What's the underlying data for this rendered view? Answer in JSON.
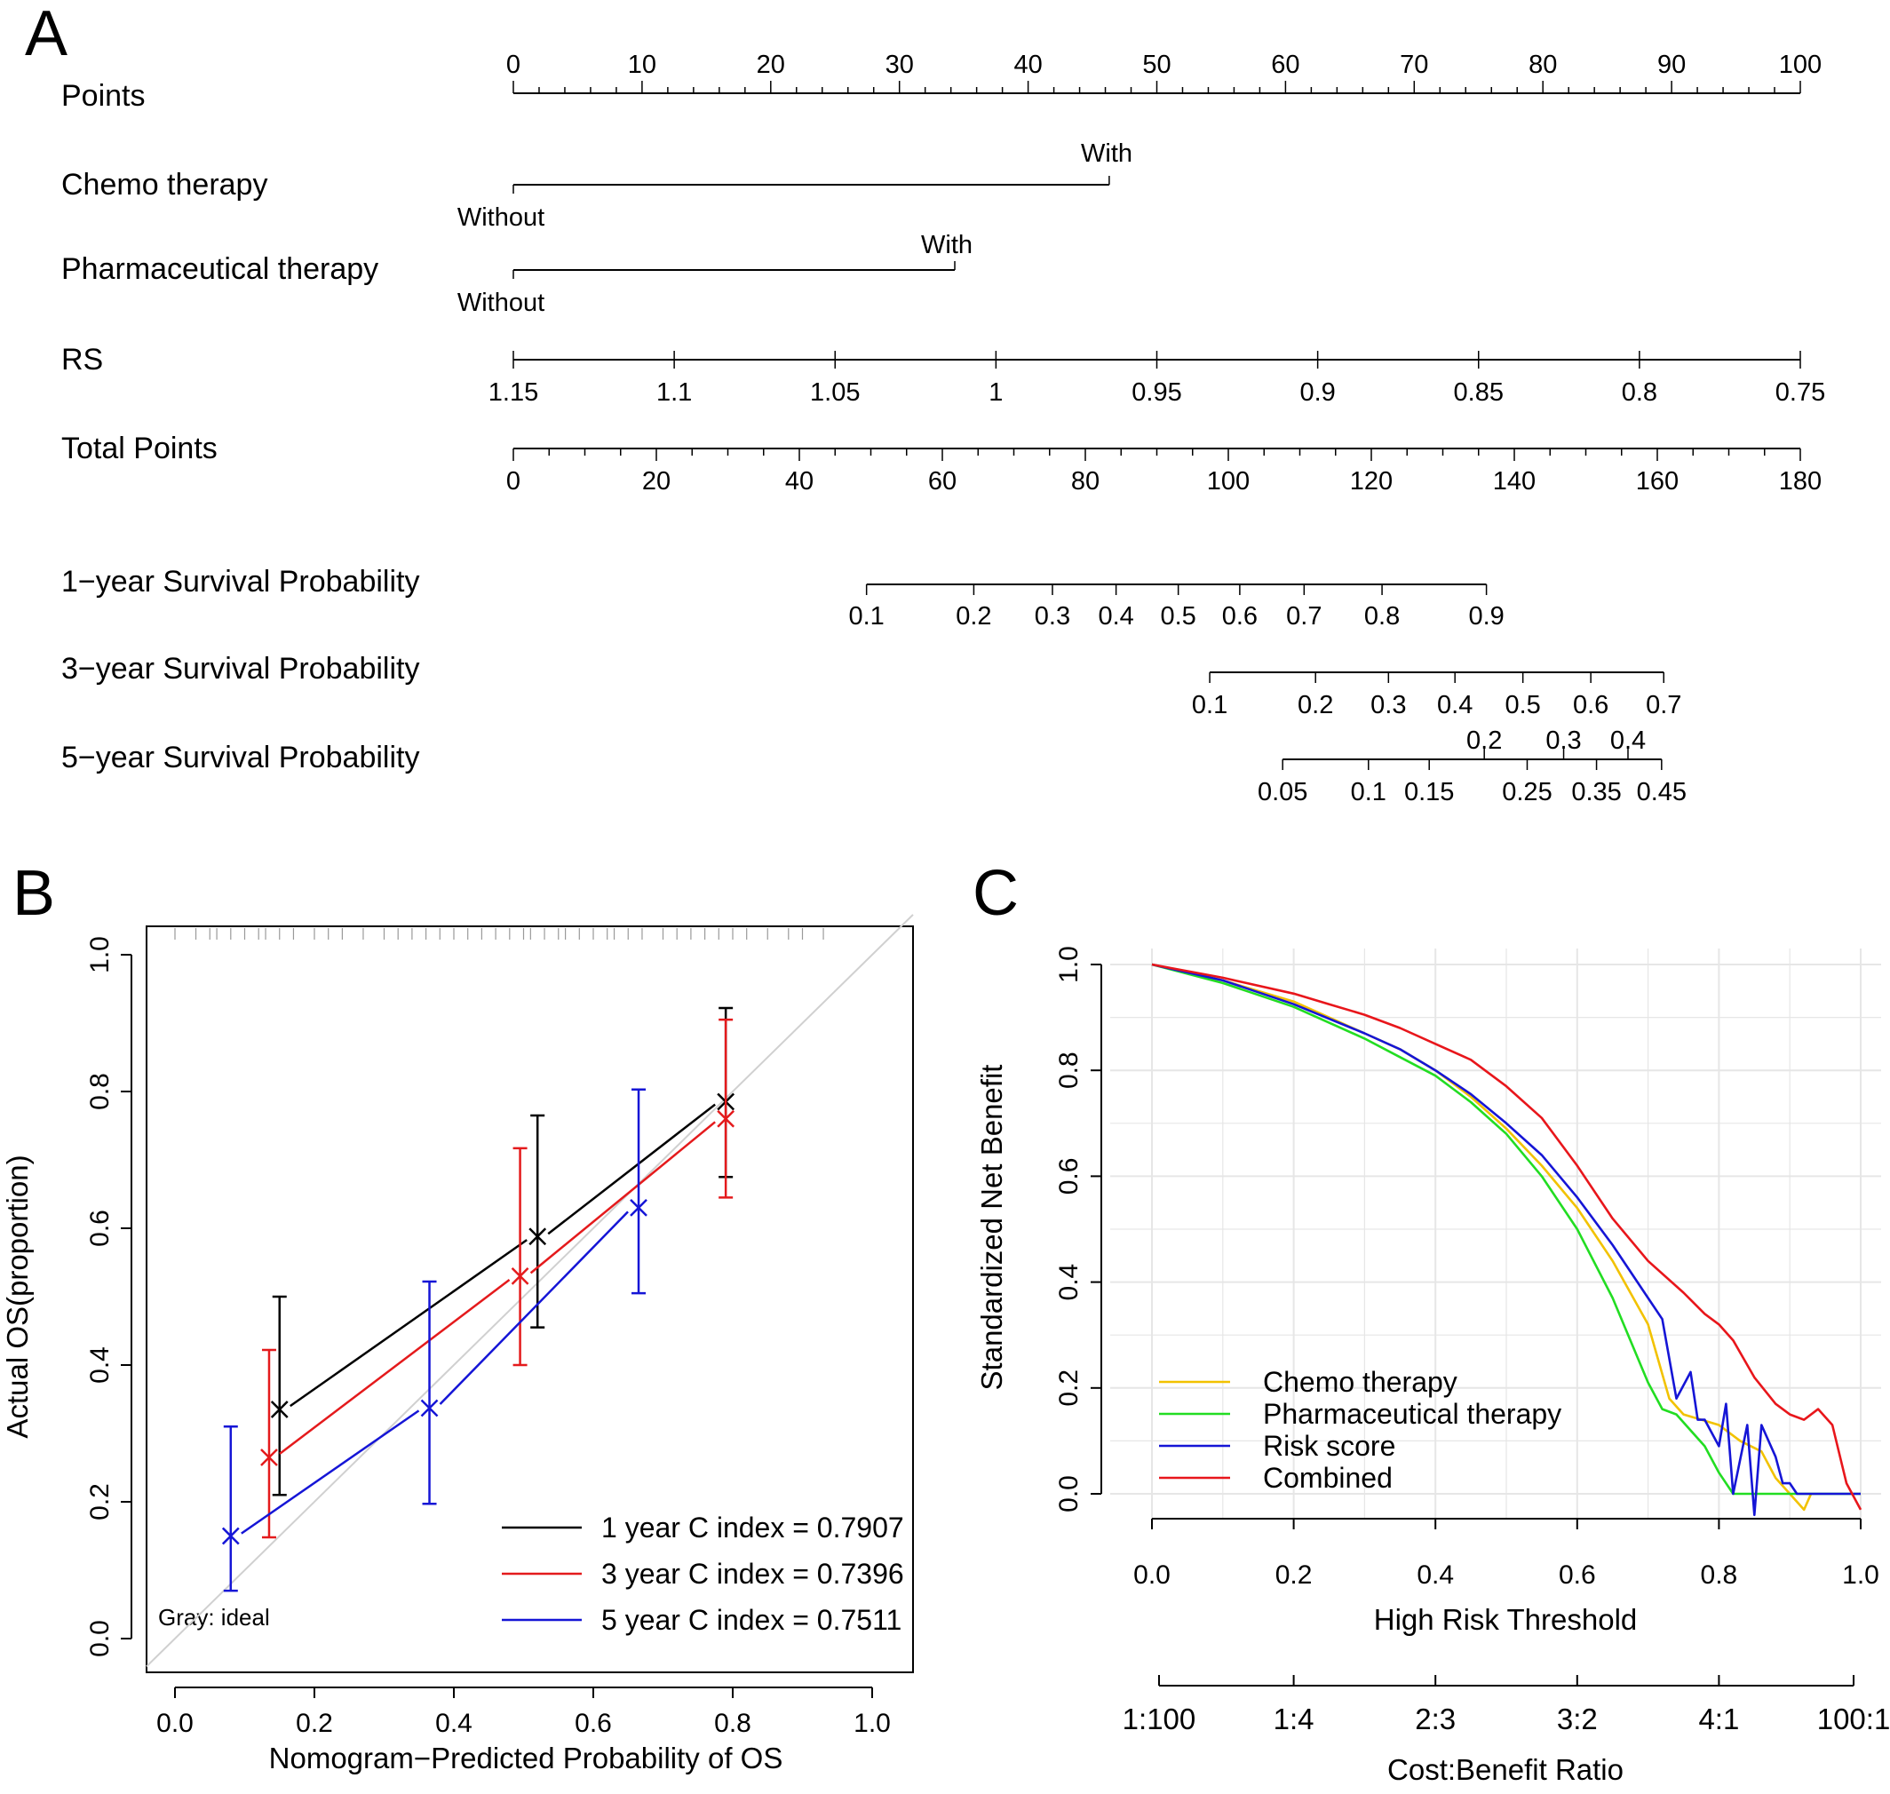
{
  "panels": {
    "A": {
      "letter": "A",
      "rows": [
        {
          "label": "Points"
        },
        {
          "label": "Chemo therapy",
          "level_high": "With",
          "level_low": "Without"
        },
        {
          "label": "Pharmaceutical therapy",
          "level_high": "With",
          "level_low": "Without"
        },
        {
          "label": "RS"
        },
        {
          "label": "Total Points"
        },
        {
          "label": "1−year Survival Probability"
        },
        {
          "label": "3−year Survival Probability"
        },
        {
          "label": "5−year Survival Probability"
        }
      ]
    },
    "B": {
      "letter": "B",
      "ideal_label": "Gray: ideal",
      "legend_position": "bottom-right"
    },
    "C": {
      "letter": "C",
      "legend_position": "bottom-left",
      "secondary_axis": {
        "label": "Cost:Benefit Ratio",
        "ticks": [
          "1:100",
          "1:4",
          "2:3",
          "3:2",
          "4:1",
          "100:1"
        ],
        "tick_thresholds": [
          0.01,
          0.2,
          0.4,
          0.6,
          0.8,
          0.99
        ]
      }
    }
  },
  "colors": {
    "black": "#000000",
    "red": "#e41a1c",
    "blue": "#1515d6",
    "yellow": "#f2c200",
    "green": "#22dd22",
    "combined": "#e8161b",
    "gray_ideal": "#d0d0d0",
    "grid": "#e6e6e6",
    "rug": "#9a9a9a"
  },
  "chart_data": [
    {
      "type": "nomogram",
      "scales": {
        "points": {
          "min": 0,
          "max": 100,
          "labels": [
            0,
            10,
            20,
            30,
            40,
            50,
            60,
            70,
            80,
            90,
            100
          ]
        },
        "chemo": {
          "Without": 0,
          "With": 46.3
        },
        "pharma": {
          "Without": 0,
          "With": 34.3
        },
        "rs": {
          "labels": [
            "1.15",
            "1.1",
            "1.05",
            "1",
            "0.95",
            "0.9",
            "0.85",
            "0.8",
            "0.75"
          ],
          "points": [
            0,
            12.5,
            25,
            37.5,
            50,
            62.5,
            75,
            87.5,
            100
          ]
        },
        "total_points": {
          "min": 0,
          "max": 180,
          "labels": [
            0,
            20,
            40,
            60,
            80,
            100,
            120,
            140,
            160,
            180
          ]
        },
        "surv1": {
          "labels": [
            "0.1",
            "0.2",
            "0.3",
            "0.4",
            "0.5",
            "0.6",
            "0.7",
            "0.8",
            "0.9"
          ],
          "total_points": [
            49.4,
            64.4,
            75.4,
            84.3,
            93,
            101.6,
            110.6,
            121.5,
            136.1
          ]
        },
        "surv3": {
          "labels": [
            "0.1",
            "0.2",
            "0.3",
            "0.4",
            "0.5",
            "0.6",
            "0.7"
          ],
          "total_points": [
            97.4,
            112.2,
            122.4,
            131.7,
            141.2,
            150.7,
            160.9
          ]
        },
        "surv5_upper": {
          "labels": [
            "0.2",
            "0.3",
            "0.4"
          ],
          "total_points": [
            135.8,
            146.9,
            155.9
          ]
        },
        "surv5": {
          "labels": [
            "0.05",
            "0.1",
            "0.15",
            "0.25",
            "0.35",
            "0.45"
          ],
          "total_points": [
            107.6,
            119.6,
            128.1,
            141.8,
            151.5,
            160.6
          ]
        }
      }
    },
    {
      "type": "line",
      "title": "",
      "xlabel": "Nomogram−Predicted Probability of OS",
      "ylabel": "Actual OS(proportion)",
      "xlim": [
        0,
        1
      ],
      "ylim": [
        0,
        1
      ],
      "x_ticks": [
        "0.0",
        "0.2",
        "0.4",
        "0.6",
        "0.8",
        "1.0"
      ],
      "y_ticks": [
        "0.0",
        "0.2",
        "0.4",
        "0.6",
        "0.8",
        "1.0"
      ],
      "series": [
        {
          "name": "1 year C index = 0.7907",
          "color": "#000000",
          "points": [
            {
              "x": 0.15,
              "y": 0.335,
              "lo": 0.21,
              "hi": 0.5
            },
            {
              "x": 0.52,
              "y": 0.588,
              "lo": 0.455,
              "hi": 0.765
            },
            {
              "x": 0.79,
              "y": 0.785,
              "lo": 0.675,
              "hi": 0.922
            }
          ]
        },
        {
          "name": "3 year C index = 0.7396",
          "color": "#e41a1c",
          "points": [
            {
              "x": 0.135,
              "y": 0.265,
              "lo": 0.148,
              "hi": 0.422
            },
            {
              "x": 0.495,
              "y": 0.53,
              "lo": 0.4,
              "hi": 0.717
            },
            {
              "x": 0.79,
              "y": 0.76,
              "lo": 0.645,
              "hi": 0.905
            }
          ]
        },
        {
          "name": "5 year C index = 0.7511",
          "color": "#1515d6",
          "points": [
            {
              "x": 0.08,
              "y": 0.15,
              "lo": 0.07,
              "hi": 0.31
            },
            {
              "x": 0.365,
              "y": 0.337,
              "lo": 0.197,
              "hi": 0.522
            },
            {
              "x": 0.665,
              "y": 0.63,
              "lo": 0.505,
              "hi": 0.803
            }
          ]
        }
      ]
    },
    {
      "type": "line",
      "title": "",
      "xlabel": "High Risk Threshold",
      "ylabel": "Standardized Net Benefit",
      "xlim": [
        0,
        1
      ],
      "ylim": [
        -0.05,
        1.05
      ],
      "x_ticks": [
        "0.0",
        "0.2",
        "0.4",
        "0.6",
        "0.8",
        "1.0"
      ],
      "y_ticks": [
        "0.0",
        "0.2",
        "0.4",
        "0.6",
        "0.8",
        "1.0"
      ],
      "grid": true,
      "series": [
        {
          "name": "Chemo therapy",
          "color": "#f2c200",
          "x": [
            0,
            0.1,
            0.2,
            0.3,
            0.35,
            0.4,
            0.45,
            0.5,
            0.55,
            0.6,
            0.65,
            0.7,
            0.73,
            0.75,
            0.8,
            0.83,
            0.86,
            0.88,
            0.9,
            0.92,
            0.93
          ],
          "y": [
            1.0,
            0.97,
            0.93,
            0.87,
            0.84,
            0.8,
            0.75,
            0.69,
            0.62,
            0.54,
            0.44,
            0.32,
            0.18,
            0.15,
            0.13,
            0.1,
            0.08,
            0.03,
            0.0,
            -0.03,
            0.0
          ]
        },
        {
          "name": "Pharmaceutical therapy",
          "color": "#22dd22",
          "x": [
            0,
            0.1,
            0.2,
            0.3,
            0.35,
            0.4,
            0.45,
            0.5,
            0.55,
            0.6,
            0.65,
            0.7,
            0.72,
            0.74,
            0.78,
            0.8,
            0.82,
            1.0
          ],
          "y": [
            1.0,
            0.965,
            0.92,
            0.86,
            0.825,
            0.79,
            0.74,
            0.68,
            0.6,
            0.5,
            0.37,
            0.21,
            0.16,
            0.15,
            0.09,
            0.04,
            0.0,
            0.0
          ]
        },
        {
          "name": "Risk score",
          "color": "#1515d6",
          "x": [
            0,
            0.1,
            0.2,
            0.3,
            0.35,
            0.4,
            0.45,
            0.5,
            0.55,
            0.6,
            0.65,
            0.7,
            0.72,
            0.74,
            0.76,
            0.77,
            0.78,
            0.8,
            0.81,
            0.82,
            0.84,
            0.85,
            0.86,
            0.88,
            0.89,
            0.9,
            0.91,
            0.92,
            1.0
          ],
          "y": [
            1.0,
            0.97,
            0.925,
            0.87,
            0.84,
            0.8,
            0.755,
            0.7,
            0.64,
            0.56,
            0.47,
            0.37,
            0.33,
            0.18,
            0.23,
            0.14,
            0.14,
            0.09,
            0.17,
            0.0,
            0.13,
            -0.04,
            0.13,
            0.07,
            0.02,
            0.02,
            0.0,
            0.0,
            0.0
          ]
        },
        {
          "name": "Combined",
          "color": "#e8161b",
          "x": [
            0,
            0.1,
            0.2,
            0.25,
            0.3,
            0.35,
            0.4,
            0.45,
            0.5,
            0.55,
            0.6,
            0.65,
            0.7,
            0.75,
            0.78,
            0.8,
            0.82,
            0.85,
            0.88,
            0.9,
            0.92,
            0.94,
            0.96,
            0.98,
            1.0
          ],
          "y": [
            1.0,
            0.975,
            0.945,
            0.925,
            0.905,
            0.88,
            0.85,
            0.82,
            0.77,
            0.71,
            0.62,
            0.52,
            0.44,
            0.38,
            0.34,
            0.32,
            0.29,
            0.22,
            0.17,
            0.15,
            0.14,
            0.16,
            0.13,
            0.02,
            -0.03
          ]
        }
      ]
    }
  ]
}
